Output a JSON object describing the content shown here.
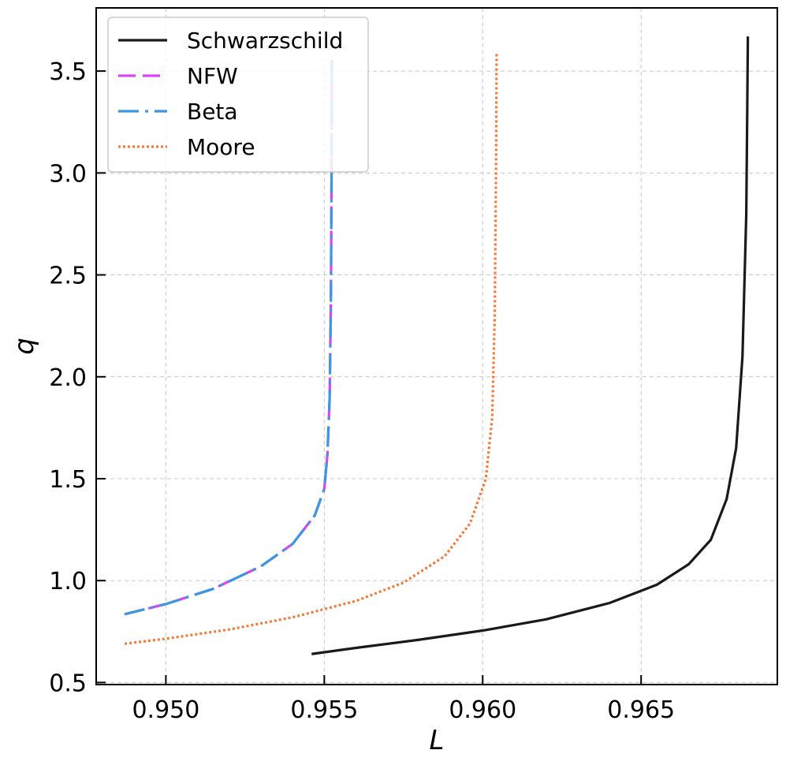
{
  "chart_data": {
    "type": "line",
    "xlabel": "L",
    "ylabel": "q",
    "xlim": [
      0.9478,
      0.9693
    ],
    "ylim": [
      0.49,
      3.81
    ],
    "xticks": [
      {
        "value": 0.95,
        "label": "0.950"
      },
      {
        "value": 0.955,
        "label": "0.955"
      },
      {
        "value": 0.96,
        "label": "0.960"
      },
      {
        "value": 0.965,
        "label": "0.965"
      }
    ],
    "yticks": [
      {
        "value": 0.5,
        "label": "0.5"
      },
      {
        "value": 1.0,
        "label": "1.0"
      },
      {
        "value": 1.5,
        "label": "1.5"
      },
      {
        "value": 2.0,
        "label": "2.0"
      },
      {
        "value": 2.5,
        "label": "2.5"
      },
      {
        "value": 3.0,
        "label": "3.0"
      },
      {
        "value": 3.5,
        "label": "3.5"
      }
    ],
    "grid": true,
    "legend_position": "top-left",
    "series": [
      {
        "name": "Schwarzschild",
        "color": "#1a1a1a",
        "dash": "solid",
        "x": [
          0.9546,
          0.956,
          0.958,
          0.96,
          0.962,
          0.964,
          0.9655,
          0.9665,
          0.9672,
          0.9677,
          0.968,
          0.9682,
          0.96832,
          0.96835,
          0.96837
        ],
        "y": [
          0.64,
          0.67,
          0.71,
          0.755,
          0.81,
          0.89,
          0.98,
          1.08,
          1.2,
          1.4,
          1.65,
          2.1,
          2.8,
          3.3,
          3.67
        ]
      },
      {
        "name": "NFW",
        "color": "#d946ef",
        "dash": "dashed",
        "x": [
          0.9487,
          0.95,
          0.9515,
          0.953,
          0.954,
          0.9547,
          0.955,
          0.9551,
          0.95517,
          0.95521,
          0.95523,
          0.95524
        ],
        "y": [
          0.835,
          0.885,
          0.96,
          1.07,
          1.18,
          1.32,
          1.45,
          1.62,
          1.9,
          2.4,
          3.0,
          3.57
        ]
      },
      {
        "name": "Beta",
        "color": "#3a97e0",
        "dash": "dashdot",
        "x": [
          0.9487,
          0.95,
          0.9515,
          0.953,
          0.954,
          0.9547,
          0.955,
          0.9551,
          0.95517,
          0.95521,
          0.95523,
          0.95524
        ],
        "y": [
          0.835,
          0.885,
          0.96,
          1.07,
          1.18,
          1.32,
          1.45,
          1.62,
          1.9,
          2.4,
          3.0,
          3.57
        ]
      },
      {
        "name": "Moore",
        "color": "#f07b3a",
        "dash": "dotted",
        "x": [
          0.9487,
          0.95,
          0.952,
          0.954,
          0.956,
          0.9575,
          0.9588,
          0.9596,
          0.9601,
          0.9603,
          0.96038,
          0.96042,
          0.96044
        ],
        "y": [
          0.69,
          0.715,
          0.76,
          0.82,
          0.9,
          0.99,
          1.12,
          1.28,
          1.5,
          1.8,
          2.3,
          3.0,
          3.59
        ]
      }
    ]
  }
}
